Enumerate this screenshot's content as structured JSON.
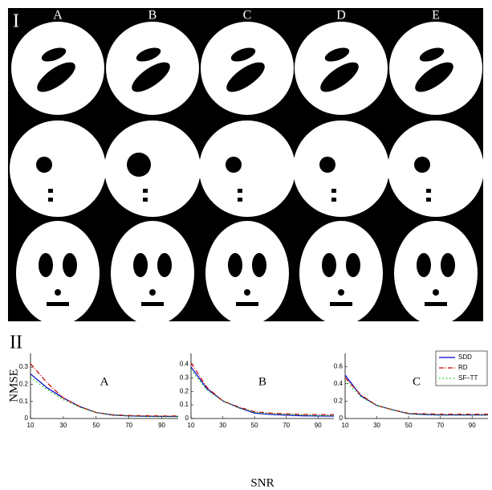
{
  "panel_i": {
    "label": "I",
    "columns": [
      "A",
      "B",
      "C",
      "D",
      "E"
    ]
  },
  "panel_ii": {
    "label": "II"
  },
  "chart_data": [
    {
      "type": "line",
      "label": "A",
      "y_label": "NMSE",
      "x": [
        10,
        20,
        30,
        40,
        50,
        60,
        70,
        80,
        90,
        100
      ],
      "xlim": [
        10,
        100
      ],
      "xticks": [
        10,
        30,
        50,
        70,
        90
      ],
      "ylim": [
        0,
        0.38
      ],
      "yticks": [
        0,
        0.1,
        0.2,
        0.3
      ],
      "series": [
        {
          "color": "#0000cc",
          "dash": "solid",
          "values": [
            0.26,
            0.18,
            0.12,
            0.07,
            0.035,
            0.02,
            0.015,
            0.013,
            0.012,
            0.012
          ]
        },
        {
          "color": "#cc0000",
          "dash": "dashdot",
          "values": [
            0.32,
            0.21,
            0.12,
            0.07,
            0.035,
            0.022,
            0.018,
            0.016,
            0.015,
            0.015
          ]
        },
        {
          "color": "#00cc00",
          "dash": "dotted",
          "values": [
            0.24,
            0.17,
            0.11,
            0.065,
            0.035,
            0.02,
            0.015,
            0.012,
            0.01,
            0.01
          ]
        }
      ]
    },
    {
      "type": "line",
      "label": "B",
      "x_label": "SNR",
      "x": [
        10,
        20,
        30,
        40,
        50,
        60,
        70,
        80,
        90,
        100
      ],
      "xlim": [
        10,
        100
      ],
      "xticks": [
        10,
        30,
        50,
        70,
        90
      ],
      "ylim": [
        0,
        0.48
      ],
      "yticks": [
        0,
        0.1,
        0.2,
        0.3,
        0.4
      ],
      "series": [
        {
          "color": "#0000cc",
          "dash": "solid",
          "values": [
            0.38,
            0.22,
            0.13,
            0.08,
            0.04,
            0.03,
            0.025,
            0.02,
            0.018,
            0.018
          ]
        },
        {
          "color": "#cc0000",
          "dash": "dashdot",
          "values": [
            0.41,
            0.23,
            0.13,
            0.085,
            0.05,
            0.04,
            0.035,
            0.03,
            0.028,
            0.028
          ]
        },
        {
          "color": "#00cc00",
          "dash": "dotted",
          "values": [
            0.36,
            0.21,
            0.13,
            0.08,
            0.045,
            0.035,
            0.03,
            0.025,
            0.022,
            0.022
          ]
        }
      ]
    },
    {
      "type": "line",
      "label": "C",
      "legend": "upper right",
      "x": [
        10,
        20,
        30,
        40,
        50,
        60,
        70,
        80,
        90,
        100
      ],
      "xlim": [
        10,
        100
      ],
      "xticks": [
        10,
        30,
        50,
        70,
        90
      ],
      "ylim": [
        0,
        0.75
      ],
      "yticks": [
        0,
        0.2,
        0.4,
        0.6
      ],
      "series": [
        {
          "name": "SDD",
          "color": "#0000cc",
          "dash": "solid",
          "values": [
            0.5,
            0.26,
            0.15,
            0.1,
            0.055,
            0.045,
            0.04,
            0.04,
            0.04,
            0.04
          ]
        },
        {
          "name": "RD",
          "color": "#cc0000",
          "dash": "dashdot",
          "values": [
            0.47,
            0.27,
            0.15,
            0.1,
            0.06,
            0.055,
            0.05,
            0.05,
            0.05,
            0.05
          ]
        },
        {
          "name": "SF–TT",
          "color": "#00cc00",
          "dash": "dotted",
          "values": [
            0.44,
            0.25,
            0.15,
            0.1,
            0.055,
            0.045,
            0.04,
            0.04,
            0.04,
            0.04
          ]
        }
      ]
    }
  ]
}
